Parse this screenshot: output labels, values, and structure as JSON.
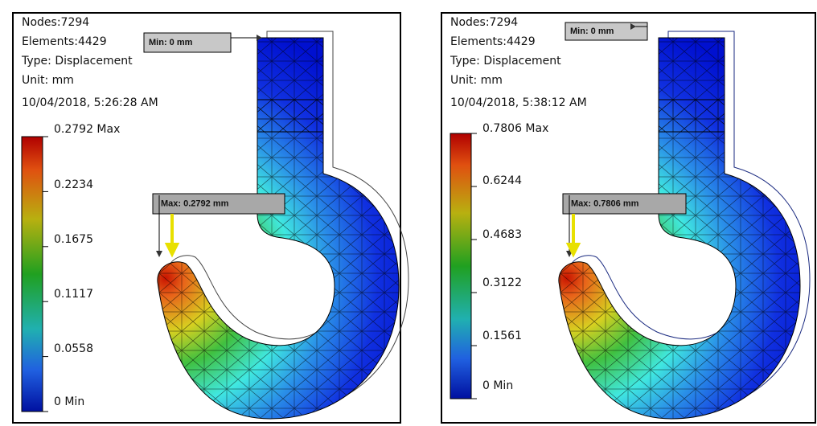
{
  "panels": [
    {
      "nodes": "Nodes:7294",
      "elements": "Elements:4429",
      "type": "Type: Displacement",
      "unit": "Unit: mm",
      "timestamp": "10/04/2018, 5:26:28 AM",
      "legend": [
        "0.2792 Max",
        "0.2234",
        "0.1675",
        "0.1117",
        "0.0558",
        "0 Min"
      ],
      "min_callout": "Min: 0 mm",
      "max_callout": "Max: 0.2792 mm"
    },
    {
      "nodes": "Nodes:7294",
      "elements": "Elements:4429",
      "type": "Type: Displacement",
      "unit": "Unit: mm",
      "timestamp": "10/04/2018, 5:38:12 AM",
      "legend": [
        "0.7806 Max",
        "0.6244",
        "0.4683",
        "0.3122",
        "0.1561",
        "0 Min"
      ],
      "min_callout": "Min: 0 mm",
      "max_callout": "Max: 0.7806 mm"
    }
  ]
}
